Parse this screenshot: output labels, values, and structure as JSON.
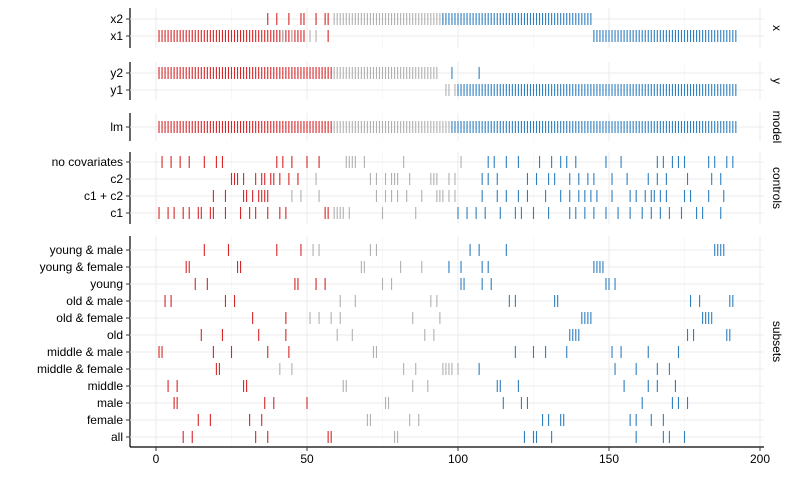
{
  "chart_data": {
    "type": "strip",
    "xlim": [
      -8,
      200
    ],
    "x_ticks": [
      0,
      50,
      100,
      150,
      200
    ],
    "colors": {
      "red": "#d62728",
      "gray": "#b0b0b0",
      "blue": "#2e7fc0"
    },
    "panels": [
      {
        "strip_label": "x",
        "rows": [
          {
            "label": "x2",
            "segments": [
              {
                "color": "red",
                "values": [
                  37,
                  40,
                  44,
                  48,
                  49,
                  53,
                  56,
                  57
                ]
              },
              {
                "color": "gray",
                "range": [
                  59,
                  95,
                  1
                ]
              },
              {
                "color": "blue",
                "range": [
                  95,
                  144,
                  1
                ]
              }
            ]
          },
          {
            "label": "x1",
            "segments": [
              {
                "color": "red",
                "range": [
                  1,
                  47,
                  1
                ]
              },
              {
                "color": "red",
                "values": [
                  48,
                  49,
                  57
                ]
              },
              {
                "color": "gray",
                "values": [
                  42,
                  45,
                  51,
                  53
                ]
              },
              {
                "color": "blue",
                "range": [
                  145,
                  192,
                  1
                ]
              }
            ]
          }
        ]
      },
      {
        "strip_label": "y",
        "rows": [
          {
            "label": "y2",
            "segments": [
              {
                "color": "red",
                "range": [
                  1,
                  58,
                  1
                ]
              },
              {
                "color": "gray",
                "range": [
                  59,
                  93,
                  1
                ]
              },
              {
                "color": "blue",
                "values": [
                  98,
                  107
                ]
              }
            ]
          },
          {
            "label": "y1",
            "segments": [
              {
                "color": "gray",
                "values": [
                  96,
                  97,
                  99
                ]
              },
              {
                "color": "blue",
                "range": [
                  100,
                  192,
                  1
                ]
              }
            ]
          }
        ]
      },
      {
        "strip_label": "model",
        "rows": [
          {
            "label": "lm",
            "segments": [
              {
                "color": "red",
                "range": [
                  1,
                  58,
                  1
                ]
              },
              {
                "color": "gray",
                "range": [
                  59,
                  97,
                  1
                ]
              },
              {
                "color": "blue",
                "range": [
                  98,
                  192,
                  1
                ]
              }
            ]
          }
        ]
      },
      {
        "strip_label": "controls",
        "rows": [
          {
            "label": "no covariates",
            "segments": [
              {
                "color": "red",
                "values": [
                  2,
                  5,
                  8,
                  11,
                  16,
                  20,
                  22,
                  40,
                  42,
                  45,
                  50,
                  54
                ]
              },
              {
                "color": "gray",
                "values": [
                  63,
                  64,
                  65,
                  66,
                  69,
                  82,
                  101
                ]
              },
              {
                "color": "blue",
                "values": [
                  110,
                  112,
                  116,
                  120,
                  127,
                  131,
                  134,
                  136,
                  139,
                  149,
                  154,
                  166,
                  168,
                  171,
                  173,
                  175,
                  183,
                  185,
                  189,
                  191
                ]
              }
            ]
          },
          {
            "label": "c2",
            "segments": [
              {
                "color": "red",
                "values": [
                  25,
                  26,
                  27,
                  29,
                  33,
                  35,
                  36,
                  38,
                  39,
                  41,
                  44,
                  47
                ]
              },
              {
                "color": "gray",
                "values": [
                  53,
                  71,
                  73,
                  76,
                  78,
                  79,
                  80,
                  84,
                  91,
                  92,
                  93,
                  97,
                  99
                ]
              },
              {
                "color": "blue",
                "values": [
                  108,
                  110,
                  113,
                  123,
                  126,
                  130,
                  132,
                  137,
                  140,
                  143,
                  145,
                  151,
                  156,
                  163,
                  166,
                  169,
                  176,
                  184,
                  187
                ]
              }
            ]
          },
          {
            "label": "c1 + c2",
            "segments": [
              {
                "color": "red",
                "values": [
                  19,
                  23,
                  29,
                  30,
                  32,
                  34,
                  35,
                  36,
                  37
                ]
              },
              {
                "color": "gray",
                "values": [
                  45,
                  48,
                  54,
                  73,
                  76,
                  78,
                  80,
                  83,
                  88,
                  93,
                  94,
                  95,
                  97,
                  99
                ]
              },
              {
                "color": "blue",
                "values": [
                  108,
                  113,
                  116,
                  120,
                  123,
                  129,
                  134,
                  137,
                  140,
                  142,
                  144,
                  146,
                  151,
                  157,
                  159,
                  162,
                  164,
                  165,
                  167,
                  169,
                  175,
                  177,
                  183,
                  188
                ]
              }
            ]
          },
          {
            "label": "c1",
            "segments": [
              {
                "color": "red",
                "values": [
                  1,
                  4,
                  6,
                  9,
                  11,
                  14,
                  15,
                  18,
                  19,
                  23,
                  28,
                  31,
                  33,
                  37,
                  41,
                  43,
                  56,
                  57
                ]
              },
              {
                "color": "gray",
                "values": [
                  59,
                  60,
                  61,
                  62,
                  64,
                  75,
                  86
                ]
              },
              {
                "color": "blue",
                "values": [
                  100,
                  103,
                  106,
                  109,
                  114,
                  119,
                  121,
                  125,
                  130,
                  137,
                  139,
                  142,
                  145,
                  149,
                  153,
                  157,
                  161,
                  164,
                  167,
                  170,
                  174,
                  179,
                  181,
                  187
                ]
              }
            ]
          }
        ]
      },
      {
        "strip_label": "subsets",
        "rows": [
          {
            "label": "young & male",
            "segments": [
              {
                "color": "red",
                "values": [
                  16,
                  24,
                  40,
                  48
                ]
              },
              {
                "color": "gray",
                "values": [
                  52,
                  54,
                  71,
                  73
                ]
              },
              {
                "color": "blue",
                "values": [
                  104,
                  107,
                  116,
                  185,
                  186,
                  187,
                  188
                ]
              }
            ]
          },
          {
            "label": "young & female",
            "segments": [
              {
                "color": "red",
                "values": [
                  10,
                  11,
                  27,
                  28
                ]
              },
              {
                "color": "gray",
                "values": [
                  68,
                  69,
                  81,
                  88
                ]
              },
              {
                "color": "blue",
                "values": [
                  97,
                  101,
                  108,
                  110,
                  145,
                  146,
                  147,
                  148
                ]
              }
            ]
          },
          {
            "label": "young",
            "segments": [
              {
                "color": "red",
                "values": [
                  13,
                  17,
                  46,
                  47,
                  53,
                  56
                ]
              },
              {
                "color": "gray",
                "values": [
                  75,
                  78
                ]
              },
              {
                "color": "blue",
                "values": [
                  101,
                  102,
                  108,
                  111,
                  149,
                  150,
                  152
                ]
              }
            ]
          },
          {
            "label": "old & male",
            "segments": [
              {
                "color": "red",
                "values": [
                  3,
                  5,
                  23,
                  26
                ]
              },
              {
                "color": "gray",
                "values": [
                  61,
                  66,
                  91,
                  93
                ]
              },
              {
                "color": "blue",
                "values": [
                  117,
                  119,
                  132,
                  133,
                  177,
                  180,
                  190,
                  191
                ]
              }
            ]
          },
          {
            "label": "old & female",
            "segments": [
              {
                "color": "red",
                "values": [
                  32,
                  43
                ]
              },
              {
                "color": "gray",
                "values": [
                  51,
                  54,
                  58,
                  61,
                  85,
                  94
                ]
              },
              {
                "color": "blue",
                "values": [
                  141,
                  142,
                  143,
                  144,
                  181,
                  182,
                  183,
                  184
                ]
              }
            ]
          },
          {
            "label": "old",
            "segments": [
              {
                "color": "red",
                "values": [
                  15,
                  22,
                  34,
                  43
                ]
              },
              {
                "color": "gray",
                "values": [
                  60,
                  65,
                  89,
                  92
                ]
              },
              {
                "color": "blue",
                "values": [
                  137,
                  138,
                  139,
                  140,
                  176,
                  178,
                  189,
                  190
                ]
              }
            ]
          },
          {
            "label": "middle & male",
            "segments": [
              {
                "color": "red",
                "values": [
                  1,
                  2,
                  19,
                  25,
                  37,
                  44
                ]
              },
              {
                "color": "gray",
                "values": [
                  72,
                  73
                ]
              },
              {
                "color": "blue",
                "values": [
                  119,
                  125,
                  129,
                  136,
                  151,
                  154,
                  163,
                  173
                ]
              }
            ]
          },
          {
            "label": "middle & female",
            "segments": [
              {
                "color": "red",
                "values": [
                  20,
                  21
                ]
              },
              {
                "color": "gray",
                "values": [
                  41,
                  45,
                  82,
                  86,
                  95,
                  96,
                  97,
                  98,
                  100
                ]
              },
              {
                "color": "blue",
                "values": [
                  107,
                  152,
                  159,
                  166,
                  170
                ]
              }
            ]
          },
          {
            "label": "middle",
            "segments": [
              {
                "color": "red",
                "values": [
                  4,
                  7,
                  29,
                  30
                ]
              },
              {
                "color": "gray",
                "values": [
                  62,
                  63,
                  85,
                  90
                ]
              },
              {
                "color": "blue",
                "values": [
                  113,
                  114,
                  120,
                  155,
                  163,
                  166,
                  172
                ]
              }
            ]
          },
          {
            "label": "male",
            "segments": [
              {
                "color": "red",
                "values": [
                  6,
                  7,
                  36,
                  39,
                  50
                ]
              },
              {
                "color": "gray",
                "values": [
                  76,
                  77
                ]
              },
              {
                "color": "blue",
                "values": [
                  115,
                  121,
                  123,
                  161,
                  171,
                  173,
                  176
                ]
              }
            ]
          },
          {
            "label": "female",
            "segments": [
              {
                "color": "red",
                "values": [
                  14,
                  18,
                  31,
                  35
                ]
              },
              {
                "color": "gray",
                "values": [
                  70,
                  71,
                  84,
                  87
                ]
              },
              {
                "color": "blue",
                "values": [
                  128,
                  130,
                  134,
                  135,
                  157,
                  159,
                  164,
                  168
                ]
              }
            ]
          },
          {
            "label": "all",
            "segments": [
              {
                "color": "red",
                "values": [
                  9,
                  12,
                  33,
                  37,
                  57,
                  58
                ]
              },
              {
                "color": "gray",
                "values": [
                  79,
                  80
                ]
              },
              {
                "color": "blue",
                "values": [
                  122,
                  125,
                  126,
                  131,
                  159,
                  168,
                  170,
                  175
                ]
              }
            ]
          }
        ]
      }
    ]
  }
}
